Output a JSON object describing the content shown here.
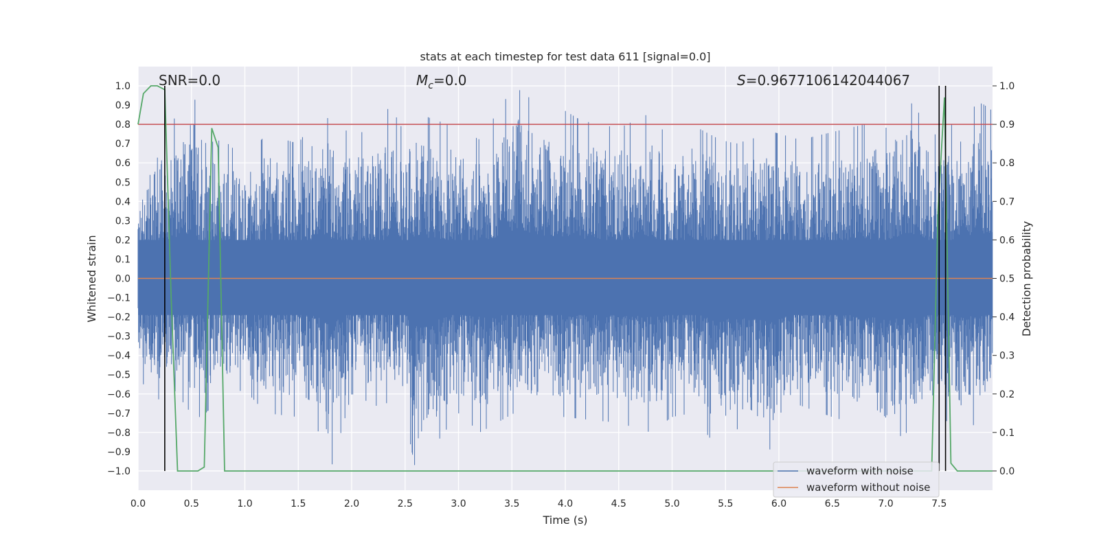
{
  "chart_data": {
    "type": "line",
    "title": "stats at each timestep for test data 611 [signal=0.0]",
    "xlabel": "Time (s)",
    "ylabel": "Whitened strain",
    "y2label": "Detection probability",
    "xlim": [
      0.0,
      8.0
    ],
    "ylim": [
      -1.1,
      1.1
    ],
    "y2lim": [
      -0.05,
      1.05
    ],
    "grid": true,
    "x_ticks": [
      0.0,
      0.5,
      1.0,
      1.5,
      2.0,
      2.5,
      3.0,
      3.5,
      4.0,
      4.5,
      5.0,
      5.5,
      6.0,
      6.5,
      7.0,
      7.5
    ],
    "y_ticks": [
      -1.0,
      -0.9,
      -0.8,
      -0.7,
      -0.6,
      -0.5,
      -0.4,
      -0.3,
      -0.2,
      -0.1,
      0.0,
      0.1,
      0.2,
      0.3,
      0.4,
      0.5,
      0.6,
      0.7,
      0.8,
      0.9,
      1.0
    ],
    "y2_ticks": [
      0.0,
      0.1,
      0.2,
      0.3,
      0.4,
      0.5,
      0.6,
      0.7,
      0.8,
      0.9,
      1.0
    ],
    "annotations": {
      "snr": "SNR=0.0",
      "mc": "=0.0",
      "mc_symbol": "M",
      "mc_sub": "c",
      "s": "=0.9677106142044067",
      "s_symbol": "S"
    },
    "legend": {
      "placement": "bottom-right",
      "entries": [
        "waveform with noise",
        "waveform without noise"
      ]
    },
    "colors": {
      "noise": "#4c72b0",
      "clean": "#dd8452",
      "probability": "#55a868",
      "threshold": "#c44e52",
      "marker": "#000000",
      "plot_bg": "#eaeaf2"
    },
    "series": [
      {
        "name": "waveform with noise",
        "axis": "left",
        "envelope": {
          "x": [
            0.0,
            0.1,
            0.2,
            0.3,
            0.52,
            0.6,
            0.8,
            1.0,
            1.2,
            1.5,
            1.7,
            1.8,
            2.0,
            2.3,
            2.35,
            2.5,
            2.6,
            3.0,
            3.2,
            3.52,
            3.8,
            4.0,
            4.15,
            4.5,
            4.8,
            5.0,
            5.18,
            5.45,
            5.6,
            5.95,
            6.2,
            6.5,
            6.8,
            7.0,
            7.2,
            7.5,
            7.7,
            7.9,
            8.0
          ],
          "upper": [
            0.45,
            0.62,
            0.78,
            0.8,
            0.97,
            0.7,
            0.72,
            0.62,
            0.75,
            0.7,
            0.87,
            0.82,
            0.75,
            0.78,
            0.91,
            0.75,
            0.86,
            0.78,
            0.72,
            1.0,
            0.88,
            0.87,
            0.82,
            0.78,
            0.86,
            0.7,
            0.8,
            0.72,
            0.7,
            0.76,
            0.72,
            0.76,
            0.8,
            0.78,
            0.94,
            0.72,
            0.86,
            0.91,
            0.87
          ],
          "lower": [
            -0.5,
            -0.6,
            -0.63,
            -0.55,
            -0.72,
            -0.72,
            -0.6,
            -0.58,
            -0.7,
            -0.72,
            -0.8,
            -1.0,
            -0.6,
            -0.68,
            -0.62,
            -0.72,
            -1.0,
            -0.7,
            -0.8,
            -0.7,
            -0.72,
            -0.72,
            -0.73,
            -0.75,
            -0.8,
            -0.72,
            -0.7,
            -0.9,
            -0.78,
            -0.9,
            -0.66,
            -0.72,
            -0.77,
            -0.86,
            -0.8,
            -0.72,
            -0.78,
            -0.75,
            -0.6
          ]
        }
      },
      {
        "name": "waveform without noise",
        "axis": "left",
        "x": [
          0.0,
          8.0
        ],
        "values": [
          0.0,
          0.0
        ]
      },
      {
        "axis": "right",
        "x": [
          0.0,
          0.05,
          0.12,
          0.18,
          0.25,
          0.31,
          0.37,
          0.56,
          0.62,
          0.69,
          0.75,
          0.81,
          7.43,
          7.49,
          7.55,
          7.61,
          7.67,
          8.0
        ],
        "values": [
          0.9,
          0.98,
          1.0,
          1.0,
          0.99,
          0.45,
          0.0,
          0.0,
          0.01,
          0.89,
          0.84,
          0.0,
          0.0,
          0.68,
          0.97,
          0.02,
          0.0,
          0.0
        ]
      }
    ],
    "threshold_right": 0.9,
    "vertical_markers": [
      0.25,
      7.5,
      7.56
    ]
  }
}
